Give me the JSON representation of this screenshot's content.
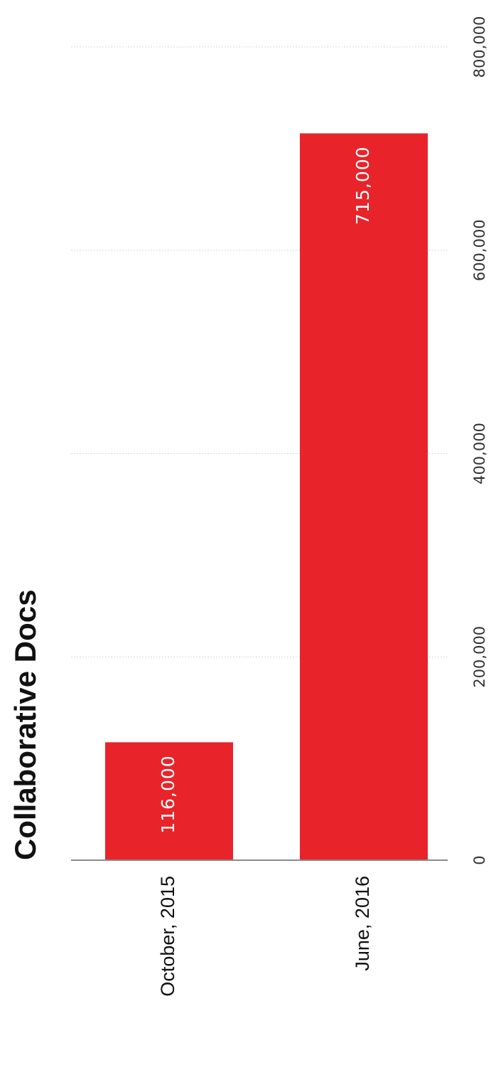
{
  "chart_data": {
    "type": "bar",
    "orientation": "horizontal",
    "title": "Collaborative Docs",
    "categories": [
      "October, 2015",
      "June, 2016"
    ],
    "values": [
      116000,
      715000
    ],
    "value_labels": [
      "116,000",
      "715,000"
    ],
    "xlim": [
      0,
      800000
    ],
    "ticks": [
      0,
      200000,
      400000,
      600000,
      800000
    ],
    "tick_labels": [
      "0",
      "200,000",
      "400,000",
      "600,000",
      "800,000"
    ],
    "grid": true,
    "bar_color": "#e8232a"
  }
}
